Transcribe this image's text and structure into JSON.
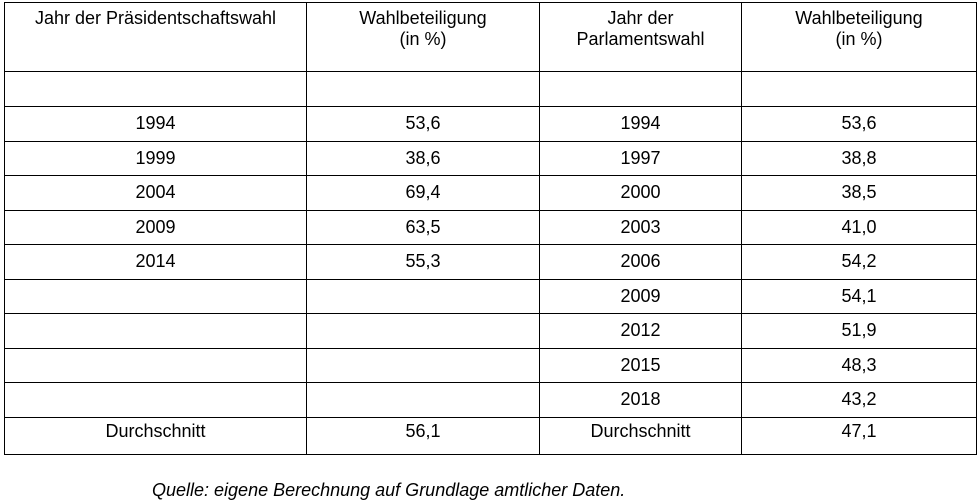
{
  "table": {
    "headers": [
      [
        "Jahr der Präsidentschaftswahl"
      ],
      [
        "Wahlbeteiligung",
        "(in %)"
      ],
      [
        "Jahr der",
        "Parlamentswahl"
      ],
      [
        "Wahlbeteiligung",
        "(in %)"
      ]
    ],
    "rows": [
      [
        "",
        "",
        "",
        ""
      ],
      [
        "1994",
        "53,6",
        "1994",
        "53,6"
      ],
      [
        "1999",
        "38,6",
        "1997",
        "38,8"
      ],
      [
        "2004",
        "69,4",
        "2000",
        "38,5"
      ],
      [
        "2009",
        "63,5",
        "2003",
        "41,0"
      ],
      [
        "2014",
        "55,3",
        "2006",
        "54,2"
      ],
      [
        "",
        "",
        "2009",
        "54,1"
      ],
      [
        "",
        "",
        "2012",
        "51,9"
      ],
      [
        "",
        "",
        "2015",
        "48,3"
      ],
      [
        "",
        "",
        "2018",
        "43,2"
      ]
    ],
    "average": [
      "Durchschnitt",
      "56,1",
      "Durchschnitt",
      "47,1"
    ]
  },
  "source": "Quelle: eigene Berechnung auf Grundlage amtlicher Daten."
}
